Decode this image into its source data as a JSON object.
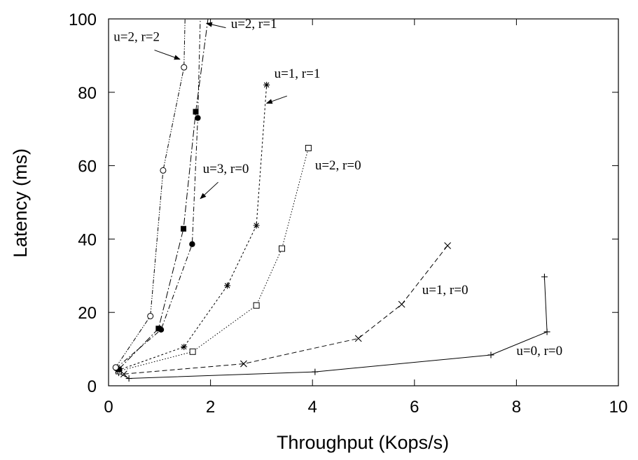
{
  "chart_data": {
    "type": "line",
    "title": "",
    "xlabel": "Throughput (Kops/s)",
    "ylabel": "Latency (ms)",
    "xlim": [
      0,
      10
    ],
    "ylim": [
      0,
      100
    ],
    "xticks": [
      0,
      2,
      4,
      6,
      8,
      10
    ],
    "yticks": [
      0,
      20,
      40,
      60,
      80,
      100
    ],
    "grid": false,
    "series": [
      {
        "name": "u=0, r=0",
        "marker": "plus",
        "dash": "solid",
        "points": [
          [
            0.2,
            3.5
          ],
          [
            0.4,
            2.0
          ],
          [
            4.05,
            3.8
          ],
          [
            7.5,
            8.4
          ],
          [
            8.6,
            14.7
          ],
          [
            8.55,
            29.7
          ]
        ]
      },
      {
        "name": "u=1, r=0",
        "marker": "cross",
        "dash": "dashed",
        "points": [
          [
            0.3,
            3.2
          ],
          [
            2.65,
            6.0
          ],
          [
            4.9,
            12.9
          ],
          [
            5.75,
            22.2
          ],
          [
            6.65,
            38.2
          ]
        ]
      },
      {
        "name": "u=2, r=0",
        "marker": "square-open",
        "dash": "dotted",
        "points": [
          [
            0.2,
            4.0
          ],
          [
            1.65,
            9.3
          ],
          [
            2.9,
            21.9
          ],
          [
            3.4,
            37.4
          ],
          [
            3.92,
            64.8
          ]
        ]
      },
      {
        "name": "u=1, r=1",
        "marker": "asterisk",
        "dash": "dashed-fine",
        "points": [
          [
            0.18,
            4.2
          ],
          [
            1.48,
            10.6
          ],
          [
            2.33,
            27.3
          ],
          [
            2.9,
            43.7
          ],
          [
            3.1,
            82.0
          ]
        ]
      },
      {
        "name": "u=3, r=0",
        "marker": "circle-filled",
        "dash": "dash-dot",
        "points": [
          [
            0.15,
            4.8
          ],
          [
            1.03,
            15.3
          ],
          [
            1.64,
            38.6
          ],
          [
            1.75,
            73.0
          ],
          [
            1.8,
            100
          ]
        ]
      },
      {
        "name": "u=2, r=1",
        "marker": "square-filled",
        "dash": "dash-dot-long",
        "points": [
          [
            0.2,
            4.5
          ],
          [
            0.98,
            15.6
          ],
          [
            1.47,
            42.8
          ],
          [
            1.71,
            74.7
          ],
          [
            1.95,
            100
          ]
        ]
      },
      {
        "name": "u=2, r=2",
        "marker": "circle-open",
        "dash": "dash-dot-dot",
        "points": [
          [
            0.14,
            5.0
          ],
          [
            0.82,
            19.0
          ],
          [
            1.07,
            58.7
          ],
          [
            1.48,
            86.8
          ],
          [
            1.5,
            100
          ]
        ]
      }
    ],
    "annotations": [
      {
        "text": "u=0, r=0",
        "x": 8.0,
        "y": 8.4,
        "arrow": false
      },
      {
        "text": "u=1, r=0",
        "x": 6.15,
        "y": 25.0,
        "arrow": false
      },
      {
        "text": "u=2, r=0",
        "x": 4.05,
        "y": 59.0,
        "arrow": false
      },
      {
        "text": "u=1, r=1",
        "x": 3.25,
        "y": 84.0,
        "arrow": true,
        "arrow_from": [
          3.5,
          79.0
        ],
        "arrow_to": [
          3.1,
          77.0
        ]
      },
      {
        "text": "u=3, r=0",
        "x": 1.85,
        "y": 58.0,
        "arrow": true,
        "arrow_from": [
          2.15,
          55.5
        ],
        "arrow_to": [
          1.8,
          51.0
        ]
      },
      {
        "text": "u=2, r=1",
        "x": 2.4,
        "y": 97.5,
        "arrow": true,
        "arrow_from": [
          2.3,
          97.6
        ],
        "arrow_to": [
          1.92,
          98.8
        ]
      },
      {
        "text": "u=2, r=2",
        "x": 0.1,
        "y": 94.0,
        "arrow": true,
        "arrow_from": [
          0.9,
          91.5
        ],
        "arrow_to": [
          1.4,
          89.0
        ]
      }
    ]
  }
}
